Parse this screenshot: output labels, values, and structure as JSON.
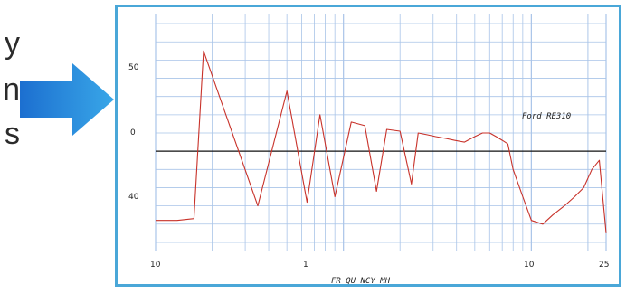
{
  "side_text": [
    "y",
    "n",
    "s"
  ],
  "chart_data": {
    "type": "line",
    "title": "",
    "xlabel": "FR QU NCY MH",
    "ylabel": "",
    "x_ticks": [
      "10",
      "1",
      "10",
      "25"
    ],
    "y_ticks": [
      "50",
      "0",
      "40"
    ],
    "annotation": "Ford RE310",
    "series": [
      {
        "color": "#c8322a",
        "x": [
          0.1,
          0.13,
          0.16,
          0.18,
          0.35,
          0.5,
          0.64,
          0.75,
          0.9,
          1.1,
          1.3,
          1.5,
          1.7,
          2.0,
          2.3,
          2.5,
          2.8,
          3.1,
          3.5,
          3.9,
          4.4,
          5.0,
          5.5,
          6.0,
          6.5,
          7.0,
          7.5,
          8.0,
          9.0,
          10.0,
          11.5,
          13.0,
          15.0,
          17.0,
          19.0,
          21.0,
          23.0,
          25.0
        ],
        "y": [
          -38,
          -38,
          -37,
          55,
          -30,
          33,
          -28,
          20,
          -25,
          16,
          14,
          -22,
          12,
          11,
          -18,
          10,
          9,
          8,
          7,
          6,
          5,
          8,
          10,
          10,
          8,
          6,
          4,
          -10,
          -25,
          -38,
          -40,
          -35,
          -30,
          -25,
          -20,
          -10,
          -5,
          -45
        ]
      }
    ],
    "xscale": "log",
    "xlim": [
      0.1,
      25
    ],
    "ylim": [
      -55,
      75
    ],
    "grid": true,
    "legend": "none",
    "colors": {
      "accent": "#4aa7d8",
      "arrow": "#1b7fcf",
      "trace": "#c8322a",
      "grid": "#a9c4e8",
      "reference_line": "#111111"
    }
  }
}
